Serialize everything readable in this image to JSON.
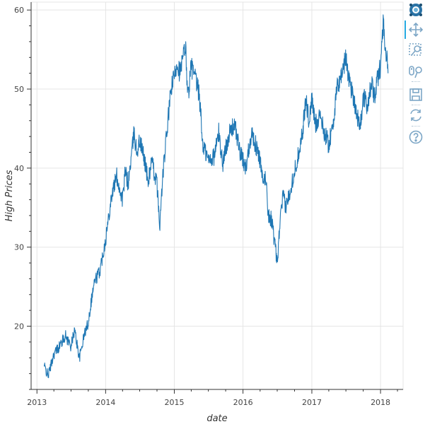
{
  "chart_data": {
    "type": "line",
    "xlabel": "date",
    "ylabel": "High Prices",
    "x_ticks": [
      "2013",
      "2014",
      "2015",
      "2016",
      "2017",
      "2018"
    ],
    "y_ticks": [
      20,
      30,
      40,
      50,
      60
    ],
    "xlim": [
      "2012-12-01",
      "2018-05-01"
    ],
    "ylim": [
      12,
      61
    ],
    "grid": true,
    "series_color": "#1f77b4",
    "x": [
      "2013-02-08",
      "2013-03-01",
      "2013-04-01",
      "2013-05-01",
      "2013-06-01",
      "2013-07-01",
      "2013-07-20",
      "2013-08-15",
      "2013-09-10",
      "2013-10-01",
      "2013-10-15",
      "2013-11-01",
      "2013-12-01",
      "2014-01-01",
      "2014-02-01",
      "2014-03-01",
      "2014-03-15",
      "2014-04-01",
      "2014-04-15",
      "2014-05-01",
      "2014-06-01",
      "2014-06-15",
      "2014-07-01",
      "2014-08-01",
      "2014-08-15",
      "2014-09-01",
      "2014-10-01",
      "2014-10-15",
      "2014-11-01",
      "2014-11-20",
      "2014-12-15",
      "2015-01-01",
      "2015-01-15",
      "2015-02-01",
      "2015-03-01",
      "2015-03-15",
      "2015-04-01",
      "2015-05-01",
      "2015-05-15",
      "2015-06-01",
      "2015-07-01",
      "2015-08-01",
      "2015-08-25",
      "2015-09-15",
      "2015-10-15",
      "2015-11-15",
      "2015-12-01",
      "2015-12-15",
      "2016-01-15",
      "2016-02-15",
      "2016-03-01",
      "2016-04-01",
      "2016-04-15",
      "2016-05-01",
      "2016-05-15",
      "2016-06-01",
      "2016-06-15",
      "2016-07-01",
      "2016-07-15",
      "2016-08-01",
      "2016-08-15",
      "2016-09-01",
      "2016-09-15",
      "2016-10-15",
      "2016-11-15",
      "2016-12-01",
      "2016-12-15",
      "2017-01-01",
      "2017-01-20",
      "2017-02-15",
      "2017-03-01",
      "2017-04-01",
      "2017-04-15",
      "2017-05-01",
      "2017-05-15",
      "2017-06-15",
      "2017-07-01",
      "2017-07-20",
      "2017-08-15",
      "2017-09-01",
      "2017-09-15",
      "2017-10-01",
      "2017-10-20",
      "2017-11-15",
      "2017-12-01",
      "2017-12-15",
      "2018-01-01",
      "2018-01-15",
      "2018-01-25",
      "2018-02-10"
    ],
    "y": [
      15.0,
      13.7,
      16.5,
      17.5,
      18.8,
      17.5,
      19.5,
      16.0,
      19.0,
      20.5,
      23.0,
      25.5,
      27.0,
      31.0,
      36.5,
      39.0,
      37.5,
      36.0,
      39.5,
      38.0,
      44.5,
      42.0,
      43.5,
      40.5,
      38.0,
      41.0,
      38.0,
      32.5,
      39.0,
      44.0,
      50.0,
      51.5,
      53.5,
      52.0,
      55.5,
      49.0,
      53.0,
      50.5,
      49.0,
      43.0,
      41.0,
      41.5,
      44.5,
      40.5,
      44.0,
      45.5,
      44.0,
      42.0,
      40.0,
      44.5,
      43.5,
      41.0,
      38.0,
      39.0,
      34.0,
      33.5,
      31.0,
      27.8,
      33.0,
      36.5,
      35.0,
      36.5,
      38.0,
      41.0,
      45.0,
      49.0,
      46.0,
      48.5,
      45.5,
      47.0,
      45.0,
      43.0,
      44.5,
      47.0,
      50.0,
      52.5,
      54.0,
      51.0,
      48.5,
      46.5,
      45.0,
      49.0,
      48.0,
      50.5,
      49.0,
      51.0,
      53.0,
      58.5,
      56.0,
      52.0
    ]
  }
}
